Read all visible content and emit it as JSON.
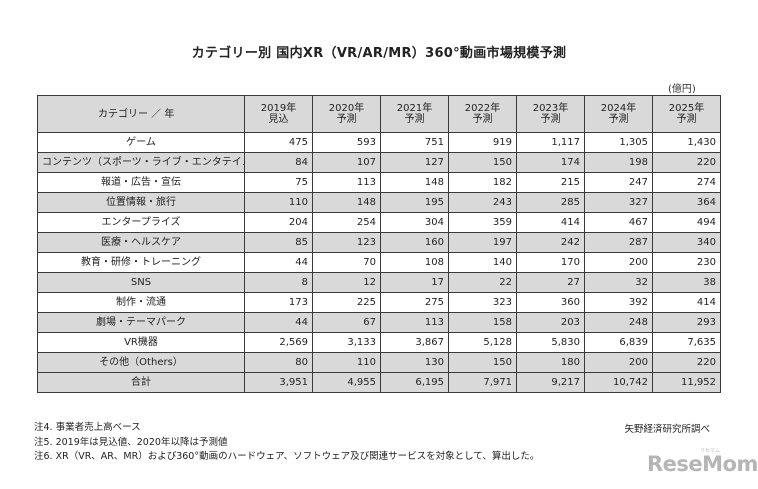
{
  "title": "カテゴリー別 国内XR（VR/AR/MR）360°動画市場規模予測",
  "unit": "(億円)",
  "table": {
    "header_category": "カテゴリー ／ 年",
    "columns": [
      {
        "year": "2019年",
        "sub": "見込"
      },
      {
        "year": "2020年",
        "sub": "予測"
      },
      {
        "year": "2021年",
        "sub": "予測"
      },
      {
        "year": "2022年",
        "sub": "予測"
      },
      {
        "year": "2023年",
        "sub": "予測"
      },
      {
        "year": "2024年",
        "sub": "予測"
      },
      {
        "year": "2025年",
        "sub": "予測"
      }
    ],
    "rows": [
      {
        "category": "ゲーム",
        "values": [
          "475",
          "593",
          "751",
          "919",
          "1,117",
          "1,305",
          "1,430"
        ]
      },
      {
        "category": "コンテンツ（スポーツ・ライブ・エンタテイメント）",
        "values": [
          "84",
          "107",
          "127",
          "150",
          "174",
          "198",
          "220"
        ]
      },
      {
        "category": "報道・広告・宣伝",
        "values": [
          "75",
          "113",
          "148",
          "182",
          "215",
          "247",
          "274"
        ]
      },
      {
        "category": "位置情報・旅行",
        "values": [
          "110",
          "148",
          "195",
          "243",
          "285",
          "327",
          "364"
        ]
      },
      {
        "category": "エンタープライズ",
        "values": [
          "204",
          "254",
          "304",
          "359",
          "414",
          "467",
          "494"
        ]
      },
      {
        "category": "医療・ヘルスケア",
        "values": [
          "85",
          "123",
          "160",
          "197",
          "242",
          "287",
          "340"
        ]
      },
      {
        "category": "教育・研修・トレーニング",
        "values": [
          "44",
          "70",
          "108",
          "140",
          "170",
          "200",
          "230"
        ]
      },
      {
        "category": "SNS",
        "values": [
          "8",
          "12",
          "17",
          "22",
          "27",
          "32",
          "38"
        ]
      },
      {
        "category": "制作・流通",
        "values": [
          "173",
          "225",
          "275",
          "323",
          "360",
          "392",
          "414"
        ]
      },
      {
        "category": "劇場・テーマパーク",
        "values": [
          "44",
          "67",
          "113",
          "158",
          "203",
          "248",
          "293"
        ]
      },
      {
        "category": "VR機器",
        "values": [
          "2,569",
          "3,133",
          "3,867",
          "5,128",
          "5,830",
          "6,839",
          "7,635"
        ]
      },
      {
        "category": "その他（Others）",
        "values": [
          "80",
          "110",
          "130",
          "150",
          "180",
          "200",
          "220"
        ]
      }
    ],
    "total": {
      "category": "合計",
      "values": [
        "3,951",
        "4,955",
        "6,195",
        "7,971",
        "9,217",
        "10,742",
        "11,952"
      ]
    }
  },
  "notes": [
    "注4.  事業者売上高ベース",
    "注5.  2019年は見込値、2020年以降は予測値",
    "注6.  XR（VR、AR、MR）および360°動画のハードウェア、ソフトウェア及び関連サービスを対象として、算出した。"
  ],
  "source": "矢野経済研究所調べ",
  "logo": {
    "text": "ReseMom",
    "ruby": "リセマム"
  }
}
